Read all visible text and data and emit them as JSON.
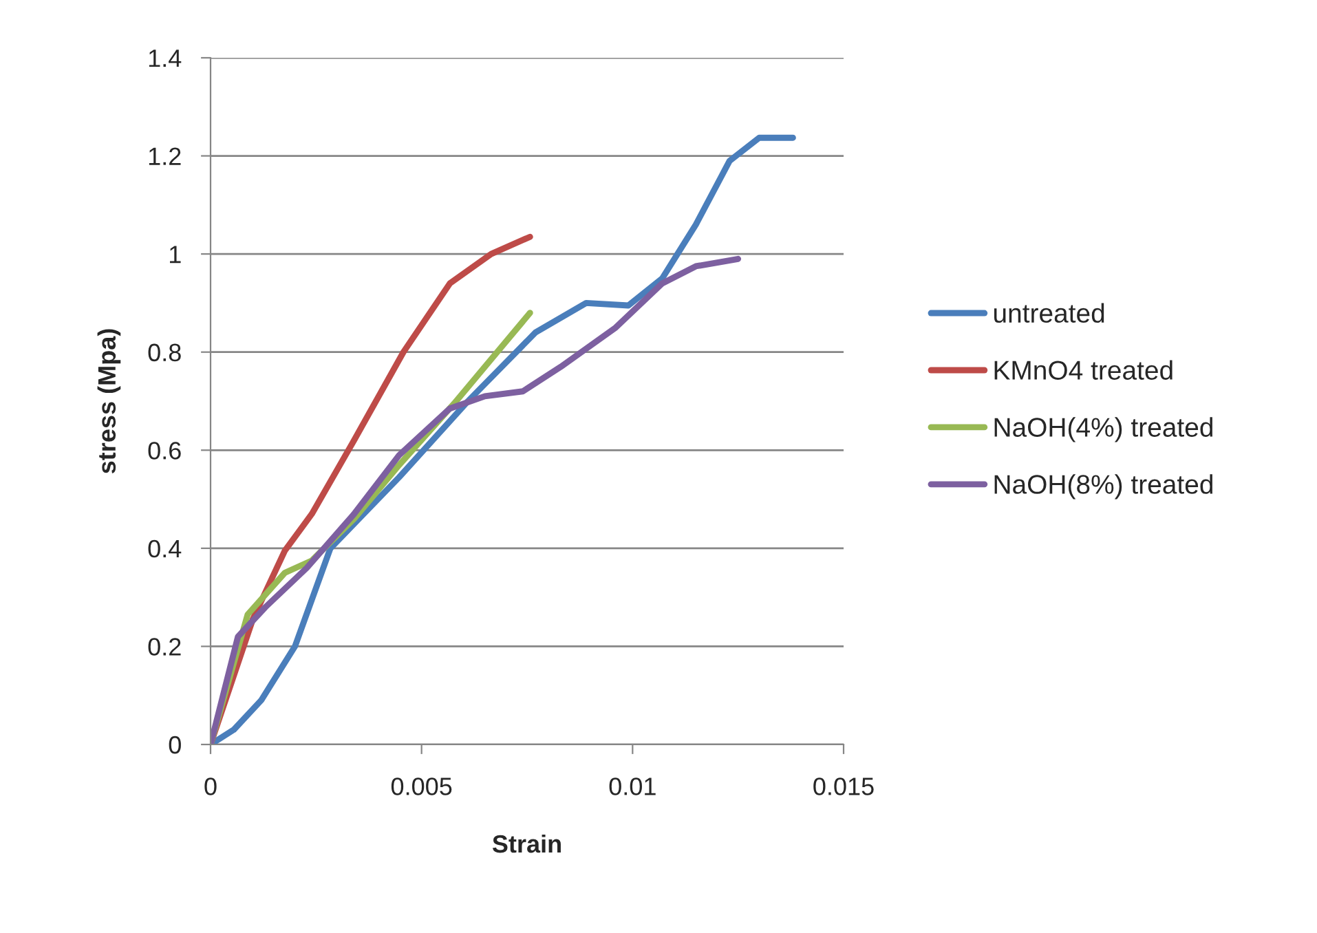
{
  "chart_data": {
    "type": "line",
    "xlabel": "Strain",
    "ylabel": "stress (Mpa)",
    "xlim": [
      0,
      0.015
    ],
    "xticks": [
      0,
      0.005,
      0.01,
      0.015
    ],
    "ylim": [
      0,
      1.4
    ],
    "yticks": [
      0,
      0.2,
      0.4,
      0.6,
      0.8,
      1,
      1.2,
      1.4
    ],
    "grid": "y",
    "legend": "right",
    "marker": "none",
    "line_style": "solid",
    "series": [
      {
        "name": "untreated",
        "color": "#4a7ebb",
        "x": [
          0,
          0.00055,
          0.0012,
          0.002,
          0.00284,
          0.00447,
          0.0061,
          0.0077,
          0.0089,
          0.0099,
          0.0107,
          0.0115,
          0.0123,
          0.013,
          0.0138
        ],
        "values": [
          0,
          0.03,
          0.09,
          0.2,
          0.4,
          0.545,
          0.7,
          0.84,
          0.9,
          0.895,
          0.95,
          1.06,
          1.19,
          1.237,
          1.237
        ]
      },
      {
        "name": "KMnO4 treated",
        "color": "#be4b48",
        "x": [
          0,
          0.001,
          0.00176,
          0.0024,
          0.0034,
          0.00457,
          0.00567,
          0.00665,
          0.00757
        ],
        "values": [
          0,
          0.255,
          0.395,
          0.47,
          0.62,
          0.8,
          0.94,
          1.0,
          1.035
        ]
      },
      {
        "name": "NaOH(4%) treated",
        "color": "#98b954",
        "x": [
          0,
          0.00088,
          0.00176,
          0.0024,
          0.0034,
          0.00447,
          0.00577,
          0.00757
        ],
        "values": [
          0,
          0.265,
          0.35,
          0.375,
          0.46,
          0.57,
          0.695,
          0.88
        ]
      },
      {
        "name": "NaOH(8%) treated",
        "color": "#7d60a0",
        "x": [
          0,
          0.00065,
          0.0013,
          0.00228,
          0.0034,
          0.00447,
          0.00567,
          0.0065,
          0.0074,
          0.0083,
          0.0096,
          0.0107,
          0.0115,
          0.0125
        ],
        "values": [
          0,
          0.22,
          0.28,
          0.36,
          0.47,
          0.59,
          0.685,
          0.71,
          0.72,
          0.77,
          0.85,
          0.94,
          0.975,
          0.99
        ]
      }
    ]
  }
}
